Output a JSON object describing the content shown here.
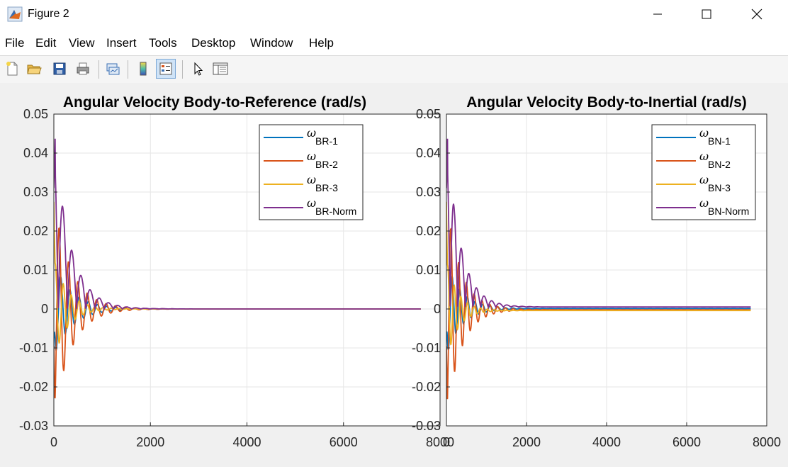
{
  "window": {
    "title": "Figure 2"
  },
  "menu": {
    "items": [
      "File",
      "Edit",
      "View",
      "Insert",
      "Tools",
      "Desktop",
      "Window",
      "Help"
    ]
  },
  "toolbar": {
    "buttons": [
      "new-figure-icon",
      "open-file-icon",
      "save-icon",
      "print-icon",
      "link-plot-icon",
      "colorbar-icon",
      "legend-icon",
      "edit-plot-arrow-icon",
      "property-inspector-icon"
    ],
    "pressed": "legend-icon"
  },
  "colors": {
    "series1": "#0072BD",
    "series2": "#D95319",
    "series3": "#EDB120",
    "series4": "#7E2F8E"
  },
  "chart_data": [
    {
      "type": "line",
      "title": "Angular Velocity Body-to-Reference (rad/s)",
      "xlim": [
        0,
        8000
      ],
      "ylim": [
        -0.03,
        0.05
      ],
      "xticks": [
        "0",
        "2000",
        "4000",
        "6000",
        "8000"
      ],
      "yticks": [
        "-0.03",
        "-0.02",
        "-0.01",
        "0",
        "0.01",
        "0.02",
        "0.03",
        "0.04",
        "0.05"
      ],
      "grid": true,
      "legend_position": "top-right",
      "series": [
        {
          "name": "ωBR-1",
          "omega": "ω",
          "sub": "BR-1",
          "color": "#0072BD",
          "a0": -0.0075,
          "env": 0.012,
          "tau": 380,
          "period": 190,
          "phase": 3.1,
          "offset": 0
        },
        {
          "name": "ωBR-2",
          "omega": "ω",
          "sub": "BR-2",
          "color": "#D95319",
          "a0": -0.0095,
          "env": 0.028,
          "tau": 360,
          "period": 195,
          "phase": 1.2,
          "offset": 0
        },
        {
          "name": "ωBR-3",
          "omega": "ω",
          "sub": "BR-3",
          "color": "#EDB120",
          "a0": 0.0275,
          "env": 0.013,
          "tau": 280,
          "period": 165,
          "phase": 0.4,
          "offset": 0
        },
        {
          "name": "ωBR-Norm",
          "omega": "ω",
          "sub": "BR-Norm",
          "color": "#7E2F8E",
          "a0": 0.031,
          "env": 0.045,
          "tau": 340,
          "period": 190,
          "phase": 0,
          "offset": 0,
          "positive": true
        }
      ],
      "x_end": 7600
    },
    {
      "type": "line",
      "title": "Angular Velocity Body-to-Inertial (rad/s)",
      "xlim": [
        0,
        8000
      ],
      "ylim": [
        -0.03,
        0.05
      ],
      "xticks": [
        "0",
        "2000",
        "4000",
        "6000",
        "8000"
      ],
      "yticks": [
        "-0.03",
        "-0.02",
        "-0.01",
        "0",
        "0.01",
        "0.02",
        "0.03",
        "0.04",
        "0.05"
      ],
      "grid": true,
      "legend_position": "top-right",
      "series": [
        {
          "name": "ωBN-1",
          "omega": "ω",
          "sub": "BN-1",
          "color": "#0072BD",
          "a0": -0.0075,
          "env": 0.012,
          "tau": 380,
          "period": 190,
          "phase": 3.1,
          "offset": 0.0001
        },
        {
          "name": "ωBN-2",
          "omega": "ω",
          "sub": "BN-2",
          "color": "#D95319",
          "a0": -0.0095,
          "env": 0.028,
          "tau": 360,
          "period": 195,
          "phase": 1.2,
          "offset": -0.0002
        },
        {
          "name": "ωBN-3",
          "omega": "ω",
          "sub": "BN-3",
          "color": "#EDB120",
          "a0": 0.0275,
          "env": 0.013,
          "tau": 280,
          "period": 165,
          "phase": 0.4,
          "offset": -0.0004
        },
        {
          "name": "ωBN-Norm",
          "omega": "ω",
          "sub": "BN-Norm",
          "color": "#7E2F8E",
          "a0": 0.031,
          "env": 0.045,
          "tau": 340,
          "period": 190,
          "phase": 0,
          "offset": 0.0005,
          "positive": true
        }
      ],
      "x_end": 7600
    }
  ]
}
